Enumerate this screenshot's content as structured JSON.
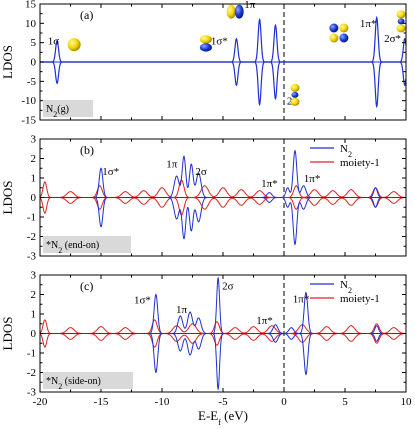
{
  "chart_data": [
    {
      "type": "line",
      "panel_tag": "(a)",
      "ylabel": "LDOS",
      "xlim": [
        -20,
        10
      ],
      "ylim": [
        -15,
        15
      ],
      "yticks": [
        -15,
        -10,
        -5,
        0,
        5,
        10,
        15
      ],
      "box_label": {
        "main": "N",
        "sub": "2",
        "tail": "(g)"
      },
      "annotations": [
        {
          "text": "1σ",
          "x": -18.9,
          "y": 4.5
        },
        {
          "text": "1σ*",
          "x": -5.3,
          "y": 4.5
        },
        {
          "text": "1π",
          "x": -2.8,
          "y": 14.0
        },
        {
          "text": "2σ",
          "x": 0.7,
          "y": -11.0
        },
        {
          "text": "1π*",
          "x": 6.9,
          "y": 9.0
        },
        {
          "text": "2σ*",
          "x": 8.9,
          "y": 5.2
        }
      ],
      "orbital_icons": [
        {
          "name": "1σ-orbital-icon",
          "x": -17.2,
          "y": 4.5,
          "kind": "sphere"
        },
        {
          "name": "1σ*-orbital-icon",
          "x": -6.4,
          "y": 4.8,
          "kind": "split-horizontal"
        },
        {
          "name": "1π-orbital-icon",
          "x": -4.0,
          "y": 13.0,
          "kind": "split-vertical"
        },
        {
          "name": "2σ-orbital-icon",
          "x": 0.9,
          "y": -8.5,
          "kind": "stacked"
        },
        {
          "name": "1π*-orbital-icon",
          "x": 4.5,
          "y": 7.5,
          "kind": "clover"
        },
        {
          "name": "2σ*-orbital-icon",
          "x": 9.6,
          "y": 10.5,
          "kind": "stacked"
        }
      ],
      "series": [
        {
          "color": "#1f2fd0",
          "peaks": [
            {
              "x": -18.6,
              "height": 5.5,
              "width": 0.12
            },
            {
              "x": -3.9,
              "height": 6.0,
              "width": 0.12
            },
            {
              "x": -2.0,
              "height": 11.0,
              "width": 0.12
            },
            {
              "x": -0.7,
              "height": 9.5,
              "width": 0.12
            },
            {
              "x": 7.6,
              "height": 11.5,
              "width": 0.12
            },
            {
              "x": 9.9,
              "height": 6.0,
              "width": 0.12
            }
          ]
        }
      ]
    },
    {
      "type": "line",
      "panel_tag": "(b)",
      "ylabel": "LDOS",
      "xlim": [
        -20,
        10
      ],
      "ylim": [
        -3,
        3
      ],
      "yticks": [
        -3,
        -2,
        -1,
        0,
        1,
        2,
        3
      ],
      "box_label": {
        "main": "*N",
        "sub": "2",
        "tail": " (end-on)"
      },
      "legend": [
        {
          "label": "N",
          "sub": "2",
          "color": "#1f2fd0"
        },
        {
          "label": "moiety-1",
          "sub": "",
          "color": "#e02020"
        }
      ],
      "annotations": [
        {
          "text": "1σ*",
          "x": -14.2,
          "y": 1.15
        },
        {
          "text": "1π",
          "x": -9.2,
          "y": 1.55
        },
        {
          "text": "2σ",
          "x": -6.8,
          "y": 1.15
        },
        {
          "text": "1π*",
          "x": -1.2,
          "y": 0.55
        },
        {
          "text": "1π*",
          "x": 2.3,
          "y": 0.8
        }
      ],
      "series": [
        {
          "name": "N₂",
          "color": "#1f2fd0",
          "peaks": [
            {
              "x": -15.0,
              "height": 1.5,
              "width": 0.15
            },
            {
              "x": -8.8,
              "height": 1.1,
              "width": 0.2
            },
            {
              "x": -8.2,
              "height": 2.1,
              "width": 0.15
            },
            {
              "x": -7.6,
              "height": 1.7,
              "width": 0.15
            },
            {
              "x": -7.0,
              "height": 1.25,
              "width": 0.2
            },
            {
              "x": -1.2,
              "height": 0.25,
              "width": 0.2
            },
            {
              "x": 0.3,
              "height": 0.5,
              "width": 0.15
            },
            {
              "x": 0.9,
              "height": 2.4,
              "width": 0.15
            },
            {
              "x": 1.6,
              "height": 0.6,
              "width": 0.2
            },
            {
              "x": 7.5,
              "height": 0.5,
              "width": 0.15
            }
          ]
        },
        {
          "name": "moiety-1",
          "color": "#e02020",
          "peaks": [
            {
              "x": -19.6,
              "height": 0.8,
              "width": 0.15
            },
            {
              "x": -17.5,
              "height": 0.3,
              "width": 0.3
            },
            {
              "x": -15.1,
              "height": 0.6,
              "width": 0.2
            },
            {
              "x": -13.0,
              "height": 0.3,
              "width": 0.3
            },
            {
              "x": -11.5,
              "height": 0.35,
              "width": 0.3
            },
            {
              "x": -10.0,
              "height": 0.5,
              "width": 0.3
            },
            {
              "x": -8.4,
              "height": 0.9,
              "width": 0.2
            },
            {
              "x": -6.5,
              "height": 0.6,
              "width": 0.3
            },
            {
              "x": -5.0,
              "height": 0.5,
              "width": 0.3
            },
            {
              "x": -3.5,
              "height": 0.4,
              "width": 0.3
            },
            {
              "x": -2.0,
              "height": 0.35,
              "width": 0.3
            },
            {
              "x": 1.0,
              "height": 0.6,
              "width": 0.2
            },
            {
              "x": 2.5,
              "height": 0.4,
              "width": 0.3
            },
            {
              "x": 4.0,
              "height": 0.35,
              "width": 0.3
            },
            {
              "x": 5.5,
              "height": 0.4,
              "width": 0.3
            },
            {
              "x": 7.5,
              "height": 0.5,
              "width": 0.2
            },
            {
              "x": 9.0,
              "height": 0.3,
              "width": 0.3
            }
          ]
        }
      ]
    },
    {
      "type": "line",
      "panel_tag": "(c)",
      "ylabel": "LDOS",
      "xlabel": {
        "main": "E-E",
        "sub": "f",
        "tail": " (eV)"
      },
      "xlim": [
        -20,
        10
      ],
      "ylim": [
        -3,
        3
      ],
      "yticks": [
        -3,
        -2,
        -1,
        0,
        1,
        2,
        3
      ],
      "xticks": [
        -20,
        -15,
        -10,
        -5,
        0,
        5,
        10
      ],
      "box_label": {
        "main": "*N",
        "sub": "2",
        "tail": " (side-on)"
      },
      "legend": [
        {
          "label": "N",
          "sub": "2",
          "color": "#1f2fd0"
        },
        {
          "label": "moiety-1",
          "sub": "",
          "color": "#e02020"
        }
      ],
      "annotations": [
        {
          "text": "1σ*",
          "x": -11.6,
          "y": 1.55
        },
        {
          "text": "1π",
          "x": -8.4,
          "y": 1.05
        },
        {
          "text": "2σ",
          "x": -4.6,
          "y": 2.25
        },
        {
          "text": "1π*",
          "x": -1.6,
          "y": 0.5
        },
        {
          "text": "1π*",
          "x": 1.4,
          "y": 1.6
        }
      ],
      "series": [
        {
          "name": "N₂",
          "color": "#1f2fd0",
          "peaks": [
            {
              "x": -10.5,
              "height": 2.0,
              "width": 0.15
            },
            {
              "x": -8.5,
              "height": 0.9,
              "width": 0.2
            },
            {
              "x": -7.7,
              "height": 1.1,
              "width": 0.2
            },
            {
              "x": -7.0,
              "height": 0.8,
              "width": 0.2
            },
            {
              "x": -5.4,
              "height": 2.85,
              "width": 0.12
            },
            {
              "x": -0.7,
              "height": 0.45,
              "width": 0.2
            },
            {
              "x": 0.6,
              "height": 0.3,
              "width": 0.2
            },
            {
              "x": 1.8,
              "height": 2.1,
              "width": 0.15
            },
            {
              "x": 7.6,
              "height": 0.4,
              "width": 0.15
            }
          ]
        },
        {
          "name": "moiety-1",
          "color": "#e02020",
          "peaks": [
            {
              "x": -19.6,
              "height": 0.7,
              "width": 0.15
            },
            {
              "x": -17.5,
              "height": 0.3,
              "width": 0.3
            },
            {
              "x": -15.0,
              "height": 0.35,
              "width": 0.3
            },
            {
              "x": -13.0,
              "height": 0.3,
              "width": 0.3
            },
            {
              "x": -10.6,
              "height": 0.7,
              "width": 0.2
            },
            {
              "x": -8.8,
              "height": 0.4,
              "width": 0.3
            },
            {
              "x": -7.5,
              "height": 0.5,
              "width": 0.3
            },
            {
              "x": -5.5,
              "height": 0.6,
              "width": 0.2
            },
            {
              "x": -4.0,
              "height": 0.3,
              "width": 0.3
            },
            {
              "x": -2.5,
              "height": 0.35,
              "width": 0.3
            },
            {
              "x": -1.0,
              "height": 0.4,
              "width": 0.3
            },
            {
              "x": 1.5,
              "height": 0.45,
              "width": 0.3
            },
            {
              "x": 3.5,
              "height": 0.35,
              "width": 0.3
            },
            {
              "x": 5.5,
              "height": 0.4,
              "width": 0.3
            },
            {
              "x": 7.6,
              "height": 0.5,
              "width": 0.2
            },
            {
              "x": 9.0,
              "height": 0.3,
              "width": 0.3
            }
          ]
        }
      ]
    }
  ]
}
